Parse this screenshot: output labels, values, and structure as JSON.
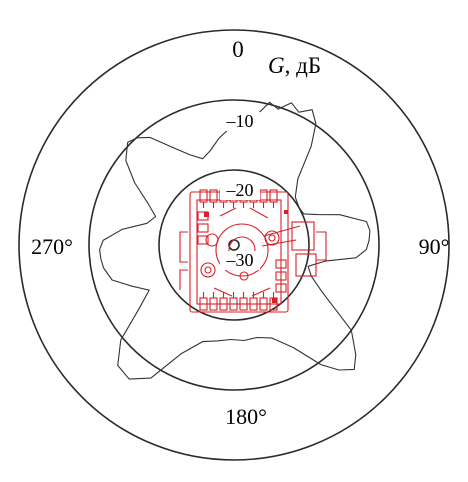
{
  "chart_data": {
    "type": "polar-line",
    "radial_axis": {
      "title_var": "G",
      "title_unit": ", дБ",
      "ticks": [
        "0",
        "–10",
        "–20",
        "–30"
      ],
      "values_db": [
        0,
        -10,
        -20,
        -30
      ]
    },
    "angle_labels": [
      "90°",
      "180°",
      "270°"
    ],
    "angle_values_deg": [
      90,
      180,
      270
    ],
    "series": [
      {
        "points": [
          [
            0,
            -13.5
          ],
          [
            8,
            -12.7
          ],
          [
            14,
            -9.7
          ],
          [
            18,
            -10.3
          ],
          [
            22,
            -8.8
          ],
          [
            26,
            -9.6
          ],
          [
            30,
            -8.4
          ],
          [
            34,
            -9.8
          ],
          [
            38,
            -12.8
          ],
          [
            44,
            -17.6
          ],
          [
            52,
            -19.6
          ],
          [
            60,
            -20.0
          ],
          [
            66,
            -19.8
          ],
          [
            70,
            -18.0
          ],
          [
            74,
            -15.0
          ],
          [
            80,
            -11.5
          ],
          [
            84,
            -11.2
          ],
          [
            88,
            -11.4
          ],
          [
            92,
            -11.8
          ],
          [
            96,
            -13.2
          ],
          [
            100,
            -17.5
          ],
          [
            106,
            -19.7
          ],
          [
            112,
            -18.8
          ],
          [
            118,
            -16.5
          ],
          [
            126,
            -10.0
          ],
          [
            132,
            -7.3
          ],
          [
            136,
            -6.0
          ],
          [
            140,
            -7.4
          ],
          [
            144,
            -9.6
          ],
          [
            150,
            -13.8
          ],
          [
            158,
            -16.4
          ],
          [
            166,
            -17.1
          ],
          [
            174,
            -17.0
          ],
          [
            182,
            -17.2
          ],
          [
            190,
            -16.8
          ],
          [
            198,
            -16.2
          ],
          [
            206,
            -13.4
          ],
          [
            212,
            -8.3
          ],
          [
            218,
            -6.4
          ],
          [
            224,
            -6.8
          ],
          [
            230,
            -9.6
          ],
          [
            236,
            -14.3
          ],
          [
            242,
            -17.0
          ],
          [
            248,
            -15.0
          ],
          [
            254,
            -12.6
          ],
          [
            260,
            -11.8
          ],
          [
            264,
            -11.6
          ],
          [
            268,
            -11.5
          ],
          [
            272,
            -12.0
          ],
          [
            278,
            -14.6
          ],
          [
            284,
            -17.9
          ],
          [
            290,
            -18.8
          ],
          [
            296,
            -17.0
          ],
          [
            302,
            -14.0
          ],
          [
            308,
            -11.1
          ],
          [
            314,
            -9.6
          ],
          [
            318,
            -10.1
          ],
          [
            322,
            -11.2
          ],
          [
            328,
            -14.3
          ],
          [
            334,
            -16.4
          ],
          [
            340,
            -17.6
          ],
          [
            346,
            -16.8
          ],
          [
            352,
            -15.3
          ],
          [
            358,
            -14.0
          ]
        ]
      }
    ]
  },
  "inset": {
    "icon": "pcb-antenna-icon",
    "color": "#d81f26"
  }
}
